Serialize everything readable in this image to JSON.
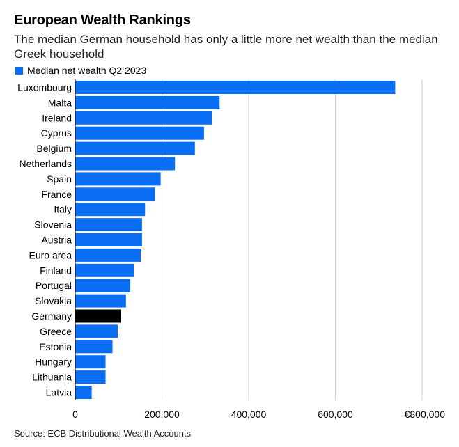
{
  "title": "European Wealth Rankings",
  "subtitle": "The median German household has only a little more net wealth than the median Greek household",
  "source": "Source: ECB Distributional Wealth Accounts",
  "colors": {
    "bar": "#0a6ef5",
    "highlight": "#000000",
    "grid": "#cfcfcf"
  },
  "chart_data": {
    "type": "bar",
    "orientation": "horizontal",
    "title": "European Wealth Rankings",
    "legend": [
      "Median net wealth Q2 2023"
    ],
    "highlight": "Germany",
    "categories": [
      "Luxembourg",
      "Malta",
      "Ireland",
      "Cyprus",
      "Belgium",
      "Netherlands",
      "Spain",
      "France",
      "Italy",
      "Slovenia",
      "Austria",
      "Euro area",
      "Finland",
      "Portugal",
      "Slovakia",
      "Germany",
      "Greece",
      "Estonia",
      "Hungary",
      "Lithuania",
      "Latvia"
    ],
    "values": [
      738000,
      333000,
      315000,
      297000,
      276000,
      230000,
      197000,
      184000,
      161000,
      154000,
      154000,
      151000,
      135000,
      127000,
      117000,
      106000,
      98000,
      86000,
      70000,
      70000,
      38000
    ],
    "xlim": [
      0,
      800000
    ],
    "xticks": [
      0,
      200000,
      400000,
      600000,
      800000
    ],
    "xtick_labels": [
      "0",
      "200,000",
      "400,000",
      "600,000",
      "€800,000"
    ],
    "xlabel": "",
    "ylabel": ""
  }
}
